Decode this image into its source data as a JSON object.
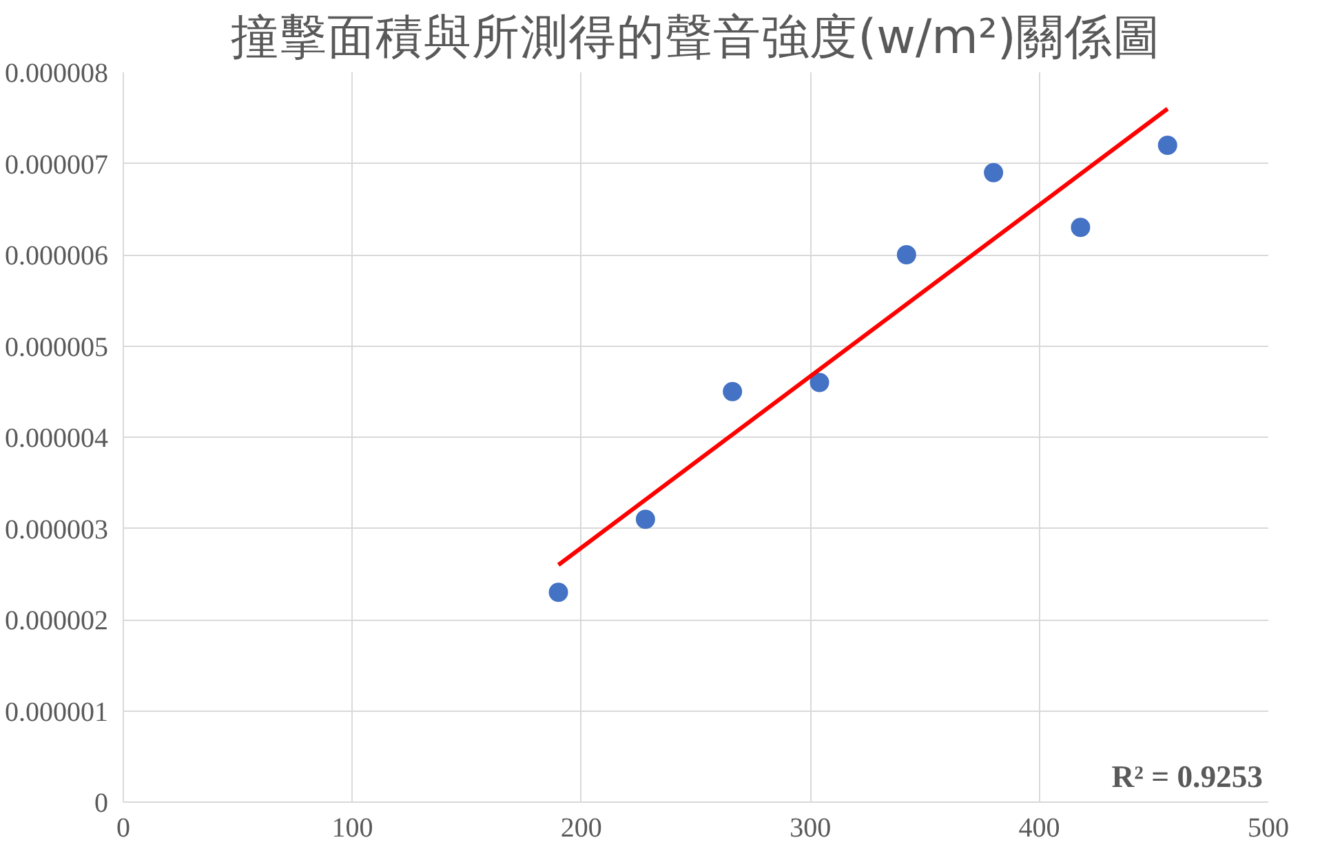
{
  "chart_data": {
    "type": "scatter",
    "title": "撞擊面積與所測得的聲音強度(w/m²)關係圖",
    "grid": true,
    "xlim": [
      0,
      500
    ],
    "xticks": [
      0,
      100,
      200,
      300,
      400,
      500
    ],
    "ylim": [
      0,
      8e-06
    ],
    "yticks": [
      0,
      {
        "value": 1e-06,
        "label": "0.000001"
      },
      {
        "value": 2e-06,
        "label": "0.000002"
      },
      {
        "value": 3e-06,
        "label": "0.000003"
      },
      {
        "value": 4e-06,
        "label": "0.000004"
      },
      {
        "value": 5e-06,
        "label": "0.000005"
      },
      {
        "value": 6e-06,
        "label": "0.000006"
      },
      {
        "value": 7e-06,
        "label": "0.000007"
      },
      {
        "value": 8e-06,
        "label": "0.000008"
      }
    ],
    "series": [
      {
        "marker": "circle",
        "color": "#4472c4",
        "x": [
          190,
          228,
          266,
          304,
          342,
          380,
          418,
          456
        ],
        "values": [
          2.3e-06,
          3.1e-06,
          4.5e-06,
          4.6e-06,
          6e-06,
          6.9e-06,
          6.3e-06,
          7.2e-06
        ]
      },
      {
        "type": "line",
        "color": "#ff0000",
        "x": [
          190,
          456
        ],
        "values": [
          2.6e-06,
          7.6e-06
        ]
      }
    ],
    "annotations": [
      "R² = 0.9253"
    ]
  }
}
